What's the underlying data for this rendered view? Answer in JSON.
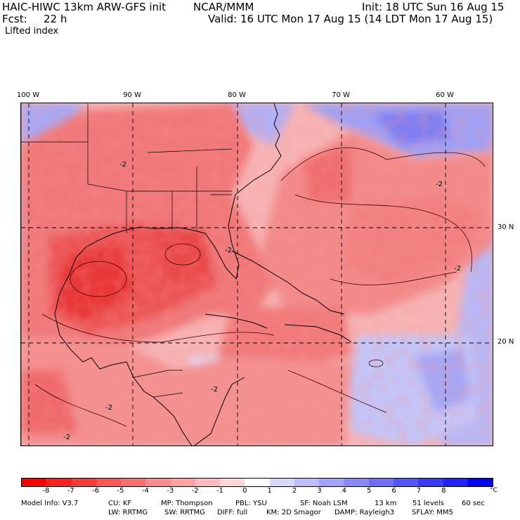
{
  "header": {
    "model": "HAIC-HIWC 13km ARW-GFS init",
    "org": "NCAR/MMM",
    "init": "Init: 18 UTC Sun 16 Aug 15",
    "fcst_label": "Fcst:",
    "fcst_value": "22 h",
    "valid": "Valid: 16 UTC Mon 17 Aug 15 (14 LDT Mon 17 Aug 15)",
    "field": "Lifted index"
  },
  "map": {
    "lon_labels": [
      "100 W",
      "90 W",
      "80 W",
      "70 W",
      "60 W"
    ],
    "lat_labels": [
      "30 N",
      "20 N"
    ],
    "contour_labels": [
      "-2",
      "-2",
      "-2",
      "-2",
      "-2",
      "-2",
      "-2"
    ],
    "colors": {
      "land_warm": "#f07070",
      "ocean_warm": "#f4a0a0",
      "cool": "#b8b8f0",
      "cold": "#8a8af0"
    }
  },
  "colorbar": {
    "ticks": [
      "-8",
      "-7",
      "-6",
      "-5",
      "-4",
      "-3",
      "-2",
      "-1",
      "0",
      "1",
      "2",
      "3",
      "4",
      "5",
      "6",
      "7",
      "8"
    ],
    "unit": "°C",
    "colors": [
      "#ff0000",
      "#ff1f1f",
      "#ff3a3a",
      "#ff5555",
      "#ff6e6e",
      "#ff8888",
      "#ffa2a2",
      "#ffbcbc",
      "#ffd7d7",
      "#ffffff",
      "#d7d7ff",
      "#bcbcff",
      "#a2a2ff",
      "#8888ff",
      "#6e6eff",
      "#5555ff",
      "#3a3aff",
      "#1f1fff",
      "#0000ff"
    ]
  },
  "model_info": {
    "line1": [
      "Model Info: V3.7",
      "CU: KF",
      "MP: Thompson",
      "PBL: YSU",
      "SF: Noah LSM",
      "13 km",
      "51 levels",
      "60 sec"
    ],
    "line2": [
      "LW: RRTMG",
      "SW: RRTMG",
      "DIFF: full",
      "KM: 2D Smagor",
      "DAMP: Rayleigh3",
      "SFLAY: MM5"
    ]
  }
}
